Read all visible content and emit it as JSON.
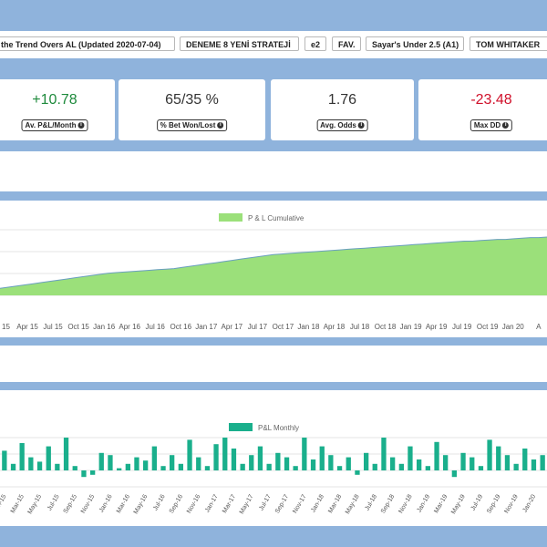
{
  "tabs": [
    {
      "label": "the Trend Overs AL (Updated 2020-07-04)"
    },
    {
      "label": "DENEME 8 YENİ STRATEJİ"
    },
    {
      "label": "e2"
    },
    {
      "label": "FAV."
    },
    {
      "label": "Sayar's Under 2.5 (A1)"
    },
    {
      "label": "TOM WHITAKER"
    }
  ],
  "stats": [
    {
      "value": "+10.78",
      "label": "Av. P&L/Month",
      "tone": "positive"
    },
    {
      "value": "65/35 %",
      "label": "% Bet Won/Lost",
      "tone": "neutral"
    },
    {
      "value": "1.76",
      "label": "Avg. Odds",
      "tone": "neutral"
    },
    {
      "value": "-23.48",
      "label": "Max DD",
      "tone": "negative"
    }
  ],
  "info_icon": "i",
  "colors": {
    "frame": "#8fb3dc",
    "positive": "#1e8a3c",
    "negative": "#d0102a",
    "cumulative_fill": "#9be07a",
    "cumulative_line": "#6a9fbf",
    "monthly_bar": "#1aaf8c"
  },
  "chart_data": [
    {
      "type": "area",
      "legend": "P & L Cumulative",
      "legend_position": "top-center",
      "grid": true,
      "x_tick_labels": [
        "15",
        "Apr 15",
        "Jul 15",
        "Oct 15",
        "Jan 16",
        "Apr 16",
        "Jul 16",
        "Oct 16",
        "Jan 17",
        "Apr 17",
        "Jul 17",
        "Oct 17",
        "Jan 18",
        "Apr 18",
        "Jul 18",
        "Oct 18",
        "Jan 19",
        "Apr 19",
        "Jul 19",
        "Oct 19",
        "Jan 20",
        "A"
      ],
      "values": [
        12,
        14,
        16,
        18,
        20,
        22,
        24,
        26,
        28,
        30,
        32,
        34,
        36,
        38,
        39,
        40,
        41,
        42,
        43,
        44,
        45,
        46,
        48,
        50,
        52,
        54,
        56,
        58,
        60,
        62,
        64,
        66,
        68,
        70,
        71,
        72,
        73,
        74,
        75,
        76,
        77,
        78,
        79,
        80,
        81,
        82,
        83,
        84,
        85,
        86,
        87,
        88,
        89,
        90,
        91,
        92,
        93,
        93,
        94,
        95,
        96,
        96,
        97,
        98,
        99,
        99,
        100
      ]
    },
    {
      "type": "bar",
      "legend": "P&L Monthly",
      "legend_position": "top-center",
      "grid": true,
      "categories": [
        "Jan-15",
        "Feb-15",
        "Mar-15",
        "Apr-15",
        "May-15",
        "Jun-15",
        "Jul-15",
        "Aug-15",
        "Sep-15",
        "Oct-15",
        "Nov-15",
        "Dec-15",
        "Jan-16",
        "Feb-16",
        "Mar-16",
        "Apr-16",
        "May-16",
        "Jun-16",
        "Jul-16",
        "Aug-16",
        "Sep-16",
        "Oct-16",
        "Nov-16",
        "Dec-16",
        "Jan-17",
        "Feb-17",
        "Mar-17",
        "Apr-17",
        "May-17",
        "Jun-17",
        "Jul-17",
        "Aug-17",
        "Sep-17",
        "Oct-17",
        "Nov-17",
        "Dec-17",
        "Jan-18",
        "Feb-18",
        "Mar-18",
        "Apr-18",
        "May-18",
        "Jun-18",
        "Jul-18",
        "Aug-18",
        "Sep-18",
        "Oct-18",
        "Nov-18",
        "Dec-18",
        "Jan-19",
        "Feb-19",
        "Mar-19",
        "Apr-19",
        "May-19",
        "Jun-19",
        "Jul-19",
        "Aug-19",
        "Sep-19",
        "Oct-19",
        "Nov-19",
        "Dec-19",
        "Jan-20",
        "Feb-20"
      ],
      "x_tick_labels": [
        "Jan-15",
        "Mar-15",
        "May-15",
        "Jul-15",
        "Sep-15",
        "Nov-15",
        "Jan-16",
        "Mar-16",
        "May-16",
        "Jul-16",
        "Sep-16",
        "Nov-16",
        "Jan-17",
        "Mar-17",
        "May-17",
        "Jul-17",
        "Sep-17",
        "Nov-17",
        "Jan-18",
        "Mar-18",
        "May-18",
        "Jul-18",
        "Sep-18",
        "Nov-18",
        "Jan-19",
        "Mar-19",
        "May-19",
        "Jul-19",
        "Sep-19",
        "Nov-19",
        "Jan-20"
      ],
      "values": [
        18,
        6,
        25,
        12,
        8,
        22,
        6,
        30,
        4,
        -6,
        -4,
        16,
        14,
        2,
        6,
        12,
        9,
        22,
        4,
        14,
        6,
        28,
        12,
        4,
        24,
        30,
        20,
        6,
        14,
        22,
        6,
        16,
        12,
        4,
        30,
        10,
        22,
        14,
        4,
        12,
        -4,
        16,
        6,
        30,
        12,
        6,
        22,
        10,
        4,
        26,
        14,
        -6,
        16,
        12,
        4,
        28,
        22,
        14,
        6,
        20,
        10,
        14
      ]
    }
  ]
}
